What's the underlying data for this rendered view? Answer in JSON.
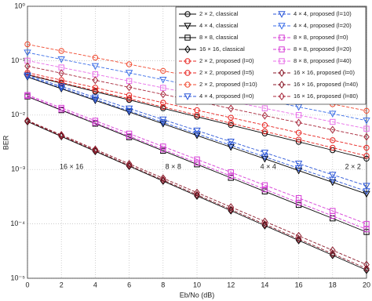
{
  "chart_data": {
    "type": "line",
    "xlabel": "Eb/No (dB)",
    "ylabel": "BER",
    "yscale": "log",
    "grid": true,
    "legend": "upper right",
    "x": [
      0,
      2,
      4,
      6,
      8,
      10,
      12,
      14,
      16,
      18,
      20
    ],
    "xlim": [
      0,
      20
    ],
    "xticks": [
      0,
      2,
      4,
      6,
      8,
      10,
      12,
      14,
      16,
      18,
      20
    ],
    "ylim": [
      1e-05,
      1
    ],
    "yticks": [
      {
        "value": 1e-05,
        "label": "10⁻⁵"
      },
      {
        "value": 0.0001,
        "label": "10⁻⁴"
      },
      {
        "value": 0.001,
        "label": "10⁻³"
      },
      {
        "value": 0.01,
        "label": "10⁻²"
      },
      {
        "value": 0.1,
        "label": "10⁻¹"
      },
      {
        "value": 1,
        "label": "10⁰"
      }
    ],
    "series": [
      {
        "name": "2 × 2, classical",
        "color": "#000000",
        "marker": "circle",
        "linestyle": "solid",
        "values": [
          0.055,
          0.0385,
          0.027,
          0.019,
          0.0133,
          0.00933,
          0.00655,
          0.00459,
          0.00322,
          0.00226,
          0.00158
        ]
      },
      {
        "name": "4 × 4, classical",
        "color": "#000000",
        "marker": "triangle",
        "linestyle": "solid",
        "values": [
          0.0501,
          0.0305,
          0.0186,
          0.0114,
          0.00692,
          0.00422,
          0.00257,
          0.00157,
          0.000955,
          0.000582,
          0.000355
        ]
      },
      {
        "name": "8 × 8, classical",
        "color": "#000000",
        "marker": "square",
        "linestyle": "solid",
        "values": [
          0.0219,
          0.0123,
          0.00695,
          0.00392,
          0.00221,
          0.00124,
          0.000702,
          0.000395,
          0.000223,
          0.000126,
          7.08e-05
        ]
      },
      {
        "name": "16 × 16, classical",
        "color": "#000000",
        "marker": "diamond",
        "linestyle": "solid",
        "values": [
          0.00759,
          0.00405,
          0.00216,
          0.00115,
          0.000614,
          0.000327,
          0.000175,
          9.31e-05,
          4.97e-05,
          2.65e-05,
          1.41e-05
        ]
      },
      {
        "name": "2 × 2, proposed (l=0)",
        "color": "#e8231f",
        "marker": "circle",
        "linestyle": "dashed",
        "values": [
          0.0562,
          0.0398,
          0.0282,
          0.02,
          0.0141,
          0.01,
          0.00708,
          0.00501,
          0.00355,
          0.00251,
          0.00178
        ]
      },
      {
        "name": "2 × 2, proposed (l=5)",
        "color": "#e8231f",
        "marker": "circle",
        "linestyle": "dashed",
        "values": [
          0.0603,
          0.0439,
          0.0319,
          0.0232,
          0.0169,
          0.0123,
          0.00895,
          0.00652,
          0.00474,
          0.00345,
          0.00251
        ]
      },
      {
        "name": "2 × 2, proposed (l=10)",
        "color": "#f04a30",
        "marker": "circle",
        "linestyle": "dashed",
        "values": [
          0.2,
          0.151,
          0.114,
          0.0859,
          0.0649,
          0.049,
          0.037,
          0.0279,
          0.0211,
          0.0159,
          0.012
        ]
      },
      {
        "name": "4 × 4, proposed (l=0)",
        "color": "#2a56d8",
        "marker": "triangle",
        "linestyle": "dashed",
        "values": [
          0.0513,
          0.0316,
          0.0194,
          0.0119,
          0.00735,
          0.00452,
          0.00278,
          0.00171,
          0.00105,
          0.000647,
          0.000398
        ]
      },
      {
        "name": "4 × 4, proposed (l=10)",
        "color": "#2a56d8",
        "marker": "triangle",
        "linestyle": "dashed",
        "values": [
          0.0537,
          0.0337,
          0.0211,
          0.0132,
          0.00828,
          0.00519,
          0.00325,
          0.00204,
          0.00128,
          0.0008,
          0.000501
        ]
      },
      {
        "name": "4 × 4, proposed (l=20)",
        "color": "#3b6ee8",
        "marker": "triangle",
        "linestyle": "dashed",
        "values": [
          0.141,
          0.106,
          0.0794,
          0.0596,
          0.0447,
          0.0335,
          0.0251,
          0.0188,
          0.0141,
          0.0106,
          0.00794
        ]
      },
      {
        "name": "8 × 8, proposed (l=0)",
        "color": "#d63cd6",
        "marker": "square",
        "linestyle": "dashed",
        "values": [
          0.0224,
          0.0127,
          0.00724,
          0.00412,
          0.00234,
          0.00133,
          0.000759,
          0.000432,
          0.000245,
          0.00014,
          7.94e-05
        ]
      },
      {
        "name": "8 × 8, proposed (l=20)",
        "color": "#d63cd6",
        "marker": "square",
        "linestyle": "dashed",
        "values": [
          0.0234,
          0.0136,
          0.00787,
          0.00456,
          0.00264,
          0.00153,
          0.000887,
          0.000514,
          0.000298,
          0.000173,
          0.0001
        ]
      },
      {
        "name": "8 × 8, proposed (l=40)",
        "color": "#e86ee8",
        "marker": "square",
        "linestyle": "dashed",
        "values": [
          0.1,
          0.075,
          0.0562,
          0.0422,
          0.0316,
          0.0237,
          0.0178,
          0.0133,
          0.01,
          0.0075,
          0.00562
        ]
      },
      {
        "name": "16 × 16, proposed (l=0)",
        "color": "#8b1a2a",
        "marker": "diamond",
        "linestyle": "dashed",
        "values": [
          0.00776,
          0.00416,
          0.00223,
          0.00119,
          0.00064,
          0.000343,
          0.000184,
          9.84e-05,
          5.27e-05,
          2.82e-05,
          1.51e-05
        ]
      },
      {
        "name": "16 × 16, proposed (l=40)",
        "color": "#8b1a2a",
        "marker": "diamond",
        "linestyle": "dashed",
        "values": [
          0.00794,
          0.00432,
          0.00234,
          0.00127,
          0.000692,
          0.000376,
          0.000204,
          0.000111,
          6.03e-05,
          3.27e-05,
          1.78e-05
        ]
      },
      {
        "name": "16 × 16, proposed (l=80)",
        "color": "#a8283c",
        "marker": "diamond",
        "linestyle": "dashed",
        "values": [
          0.0794,
          0.0589,
          0.0437,
          0.0324,
          0.024,
          0.0178,
          0.0132,
          0.00977,
          0.00724,
          0.00537,
          0.00398
        ]
      }
    ],
    "annotations": [
      {
        "text": "16 × 16",
        "x": 2.6,
        "y": 0.0011
      },
      {
        "text": "8 × 8",
        "x": 8.6,
        "y": 0.0011
      },
      {
        "text": "4 × 4",
        "x": 14.2,
        "y": 0.0011
      },
      {
        "text": "2 × 2",
        "x": 19.2,
        "y": 0.0011
      }
    ]
  }
}
